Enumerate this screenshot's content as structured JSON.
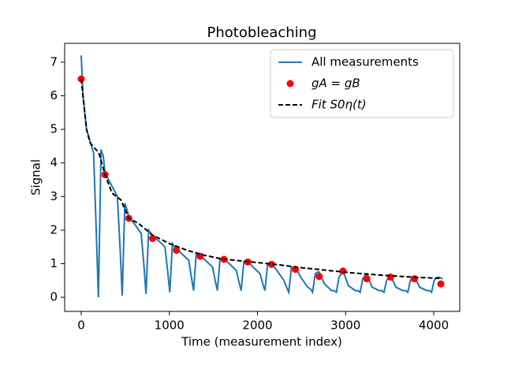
{
  "chart_data": {
    "type": "line",
    "title": "Photobleaching",
    "xlabel": "Time (measurement index)",
    "ylabel": "Signal",
    "xlim": [
      -188,
      4295
    ],
    "ylim": [
      -0.42,
      7.56
    ],
    "xticks": [
      0,
      1000,
      2000,
      3000,
      4000
    ],
    "yticks": [
      0,
      1,
      2,
      3,
      4,
      5,
      6,
      7
    ],
    "legend": "upper right",
    "series": [
      {
        "name": "All measurements",
        "kind": "line",
        "color": "#1f77b4",
        "x": [
          0,
          20,
          60,
          140,
          170,
          195,
          225,
          250,
          270,
          330,
          410,
          440,
          465,
          495,
          520,
          540,
          600,
          680,
          710,
          735,
          765,
          790,
          810,
          870,
          950,
          980,
          1005,
          1035,
          1060,
          1080,
          1140,
          1220,
          1250,
          1275,
          1305,
          1330,
          1350,
          1410,
          1490,
          1520,
          1545,
          1575,
          1600,
          1620,
          1680,
          1760,
          1790,
          1815,
          1845,
          1870,
          1890,
          1950,
          2030,
          2060,
          2085,
          2115,
          2140,
          2160,
          2220,
          2300,
          2330,
          2355,
          2385,
          2410,
          2430,
          2490,
          2570,
          2600,
          2625,
          2655,
          2680,
          2700,
          2760,
          2840,
          2870,
          2895,
          2925,
          2950,
          2970,
          3030,
          3110,
          3140,
          3165,
          3195,
          3220,
          3240,
          3300,
          3380,
          3410,
          3435,
          3465,
          3490,
          3510,
          3570,
          3650,
          3680,
          3705,
          3735,
          3760,
          3780,
          3840,
          3920,
          3950,
          3975,
          4005,
          4030,
          4060,
          4100
        ],
        "values": [
          7.2,
          6.0,
          5.0,
          4.3,
          2.0,
          0.0,
          4.4,
          4.2,
          3.7,
          3.4,
          3.0,
          1.5,
          0.05,
          2.8,
          2.6,
          2.4,
          2.2,
          1.9,
          1.0,
          0.1,
          2.0,
          1.9,
          1.8,
          1.7,
          1.5,
          0.8,
          0.15,
          1.6,
          1.5,
          1.45,
          1.3,
          1.1,
          0.6,
          0.2,
          1.3,
          1.25,
          1.25,
          1.1,
          0.9,
          0.5,
          0.2,
          1.15,
          1.1,
          1.15,
          1.0,
          0.8,
          0.45,
          0.2,
          1.05,
          1.0,
          1.08,
          0.9,
          0.7,
          0.4,
          0.2,
          1.0,
          0.95,
          1.0,
          0.8,
          0.5,
          0.3,
          0.15,
          0.9,
          0.85,
          0.9,
          0.6,
          0.3,
          0.25,
          0.15,
          0.7,
          0.75,
          0.75,
          0.4,
          0.2,
          0.2,
          0.15,
          0.6,
          0.7,
          0.8,
          0.35,
          0.2,
          0.2,
          0.15,
          0.55,
          0.65,
          0.7,
          0.3,
          0.2,
          0.2,
          0.15,
          0.5,
          0.6,
          0.65,
          0.3,
          0.2,
          0.2,
          0.15,
          0.5,
          0.6,
          0.62,
          0.3,
          0.2,
          0.2,
          0.15,
          0.5,
          0.58,
          0.6,
          0.55
        ]
      },
      {
        "name": "gA = gB",
        "kind": "scatter",
        "color": "#ff0000",
        "x": [
          0,
          270,
          540,
          810,
          1080,
          1350,
          1620,
          1890,
          2160,
          2430,
          2700,
          2970,
          3240,
          3510,
          3780,
          4080
        ],
        "values": [
          6.5,
          3.65,
          2.35,
          1.75,
          1.4,
          1.22,
          1.13,
          1.05,
          0.98,
          0.83,
          0.62,
          0.78,
          0.55,
          0.6,
          0.55,
          0.4
        ]
      },
      {
        "name": "Fit S0η(t)",
        "kind": "dashed",
        "color": "#000000",
        "x": [
          0,
          60,
          100,
          200,
          270,
          350,
          450,
          540,
          650,
          810,
          1000,
          1200,
          1400,
          1600,
          1900,
          2200,
          2500,
          2800,
          3100,
          3400,
          3700,
          4080
        ],
        "values": [
          6.5,
          5.0,
          4.6,
          4.3,
          3.65,
          3.1,
          2.9,
          2.35,
          2.2,
          1.85,
          1.6,
          1.4,
          1.25,
          1.14,
          1.06,
          0.98,
          0.88,
          0.8,
          0.72,
          0.66,
          0.61,
          0.56
        ]
      }
    ]
  }
}
